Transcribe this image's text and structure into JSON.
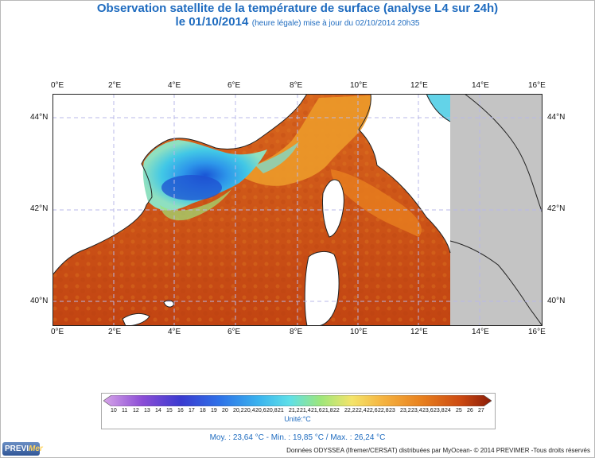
{
  "title": {
    "line1": "Observation satellite de la température de surface (analyse L4 sur 24h)",
    "date": "le 01/10/2014",
    "suffix": "(heure légale) mise à jour du 02/10/2014 20h35"
  },
  "axes": {
    "lon_labels": [
      "0°E",
      "2°E",
      "4°E",
      "6°E",
      "8°E",
      "10°E",
      "12°E",
      "14°E",
      "16°E"
    ],
    "lat_labels": [
      "44°N",
      "42°N",
      "40°N"
    ]
  },
  "colorbar": {
    "labels": [
      "10",
      "11",
      "12",
      "13",
      "14",
      "15",
      "16",
      "17",
      "18",
      "19",
      "20",
      "20,2",
      "20,4",
      "20,6",
      "20,8",
      "21",
      "21,2",
      "21,4",
      "21,6",
      "21,8",
      "22",
      "22,2",
      "22,4",
      "22,6",
      "22,8",
      "23",
      "23,2",
      "23,4",
      "23,6",
      "23,8",
      "24",
      "25",
      "26",
      "27"
    ],
    "unit": "Unité:°C"
  },
  "stats": "Moy. : 23,64 °C   -   Min. : 19,85 °C / Max. : 26,24 °C",
  "credit": "Données ODYSSEA (Ifremer/CERSAT) distribuées par MyOcean- © 2014 PREVIMER -Tous droits réservés",
  "logo": {
    "a": "PREVI",
    "b": "Mer"
  },
  "colors": {
    "title": "#1e6bbf",
    "land": "#c4c4c4",
    "sea_warm": "#c84a14",
    "sea_mid": "#e8841f",
    "sea_cool": "#39c3e6"
  }
}
